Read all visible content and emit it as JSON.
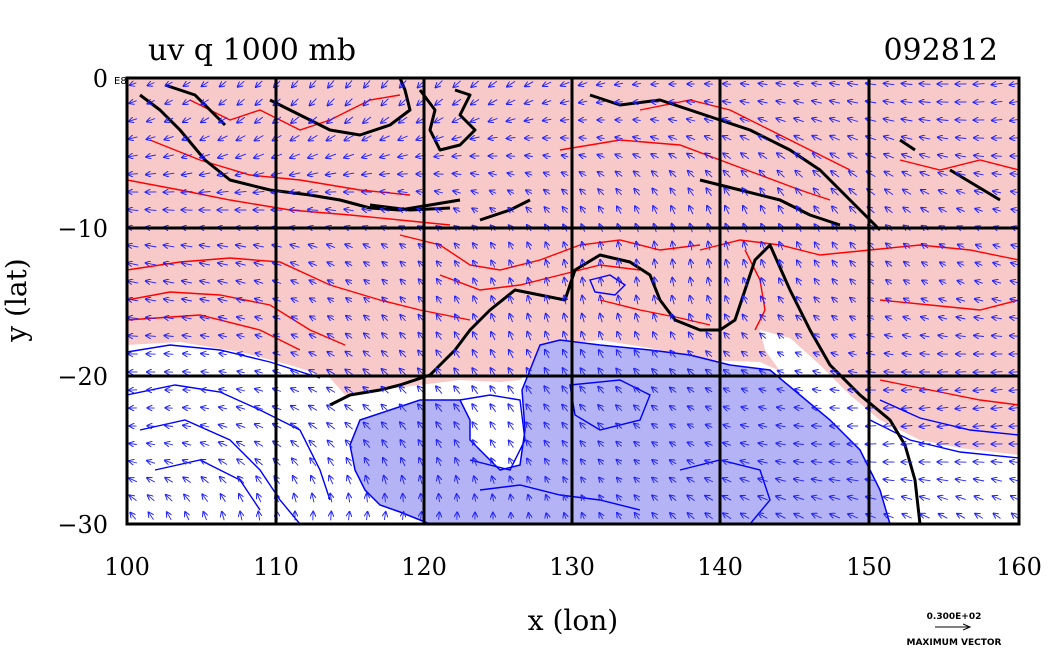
{
  "title": {
    "left": "uv q 1000 mb",
    "right": "092812"
  },
  "axes": {
    "x": {
      "label": "x (lon)",
      "range": [
        100,
        160
      ],
      "ticks": [
        "100",
        "110",
        "120",
        "130",
        "140",
        "150",
        "160"
      ]
    },
    "y": {
      "label": "y (lat)",
      "range": [
        -30,
        0
      ],
      "ticks": [
        "0",
        "−10",
        "−20",
        "−30"
      ]
    }
  },
  "corner_label": "E8",
  "reference_vector": {
    "value": "0.300E+02",
    "caption": "MAXIMUM VECTOR"
  },
  "colors": {
    "moist_fill": "#f7c9c9",
    "moist_contour": "#ff0000",
    "dry_fill": "#b3b3f5",
    "dry_contour": "#0000ff",
    "vector": "#2020ff",
    "coast": "#000000",
    "grid": "#000000"
  },
  "grid": true,
  "chart_data": {
    "type": "map",
    "region": {
      "lon": [
        100,
        160
      ],
      "lat": [
        -30,
        0
      ]
    },
    "fields": [
      "wind vectors (u,v)",
      "specific humidity contours (q)"
    ],
    "level": "1000 mb"
  }
}
